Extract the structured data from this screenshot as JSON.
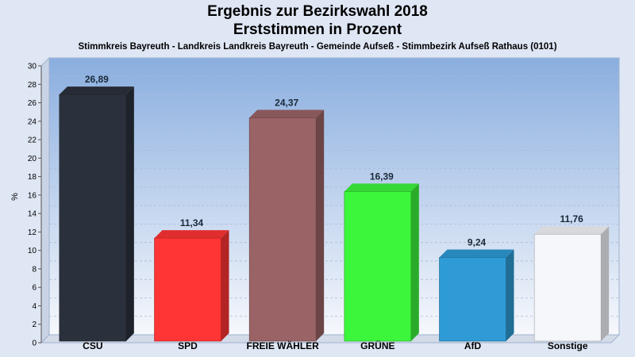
{
  "header": {
    "title_line1": "Ergebnis zur Bezirkswahl 2018",
    "title_line2": "Erststimmen in Prozent",
    "subtitle": "Stimmkreis Bayreuth - Landkreis Landkreis Bayreuth - Gemeinde Aufseß - Stimmbezirk Aufseß Rathaus (0101)"
  },
  "chart_data": {
    "type": "bar",
    "title": "Ergebnis zur Bezirkswahl 2018 Erststimmen in Prozent",
    "ylabel": "%",
    "xlabel": "",
    "ylim": [
      0,
      30
    ],
    "yticks": [
      0,
      2,
      4,
      6,
      8,
      10,
      12,
      14,
      16,
      18,
      20,
      22,
      24,
      26,
      28,
      30
    ],
    "grid": true,
    "categories": [
      "CSU",
      "SPD",
      "FREIE WÄHLER",
      "GRÜNE",
      "AfD",
      "Sonstige"
    ],
    "values": [
      26.89,
      11.34,
      24.37,
      16.39,
      9.24,
      11.76
    ],
    "value_labels": [
      "26,89",
      "11,34",
      "24,37",
      "16,39",
      "9,24",
      "11,76"
    ],
    "colors": [
      "#2b313c",
      "#ff3434",
      "#9a6366",
      "#3cf63c",
      "#2e9bd6",
      "#f5f7fb"
    ]
  }
}
